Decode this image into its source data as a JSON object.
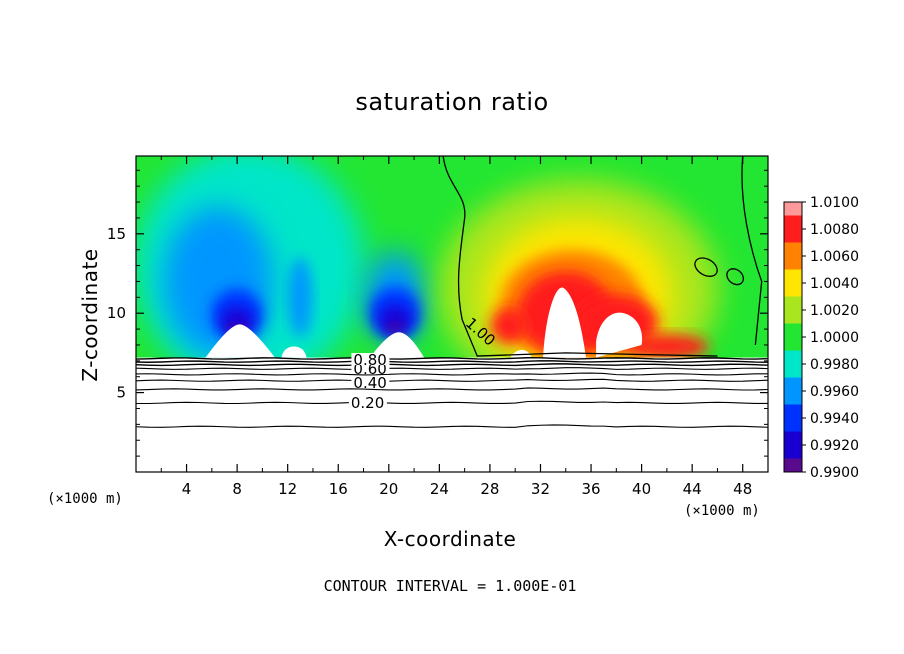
{
  "chart_data": {
    "type": "heatmap",
    "title": "saturation ratio",
    "xlabel": "X-coordinate",
    "ylabel": "Z-coordinate",
    "x_unit": "(×1000 m)",
    "footer": "CONTOUR INTERVAL = 1.000E-01",
    "xlim": [
      0,
      50
    ],
    "ylim": [
      0,
      19.9
    ],
    "x_ticks": [
      "4",
      "8",
      "12",
      "16",
      "20",
      "24",
      "28",
      "32",
      "36",
      "40",
      "44",
      "48"
    ],
    "y_ticks": [
      "5",
      "10",
      "15"
    ],
    "colorbar": {
      "ticks": [
        "0.9900",
        "0.9920",
        "0.9940",
        "0.9960",
        "0.9980",
        "1.0000",
        "1.0020",
        "1.0040",
        "1.0060",
        "1.0080",
        "1.0100"
      ],
      "colors": [
        "#5a0a8c",
        "#1a00d0",
        "#0032ff",
        "#0096ff",
        "#00e6c8",
        "#22e632",
        "#aae61e",
        "#ffe600",
        "#ff8200",
        "#ff1e1e",
        "#ff9a9a"
      ]
    },
    "contour_labels": [
      "0.20",
      "0.40",
      "0.60",
      "0.80",
      "1.00"
    ],
    "contour_levels": [
      {
        "level": "0.10",
        "z": 2.85
      },
      {
        "level": "0.20",
        "z": 4.35
      },
      {
        "level": "0.30",
        "z": 5.2
      },
      {
        "level": "0.40",
        "z": 5.75
      },
      {
        "level": "0.50",
        "z": 6.15
      },
      {
        "level": "0.60",
        "z": 6.5
      },
      {
        "level": "0.70",
        "z": 6.75
      },
      {
        "level": "0.80",
        "z": 6.95
      },
      {
        "level": "0.90",
        "z": 7.15
      }
    ],
    "unsaturated_top_z": 7.2,
    "features": {
      "subsaturated_cores": [
        {
          "x": 8,
          "z": 9.5,
          "value": 0.9905
        },
        {
          "x": 20.5,
          "z": 9.6,
          "value": 0.9915
        }
      ],
      "supersaturated_core": {
        "x": 34,
        "z": 11.5,
        "value": 1.0072
      }
    }
  }
}
